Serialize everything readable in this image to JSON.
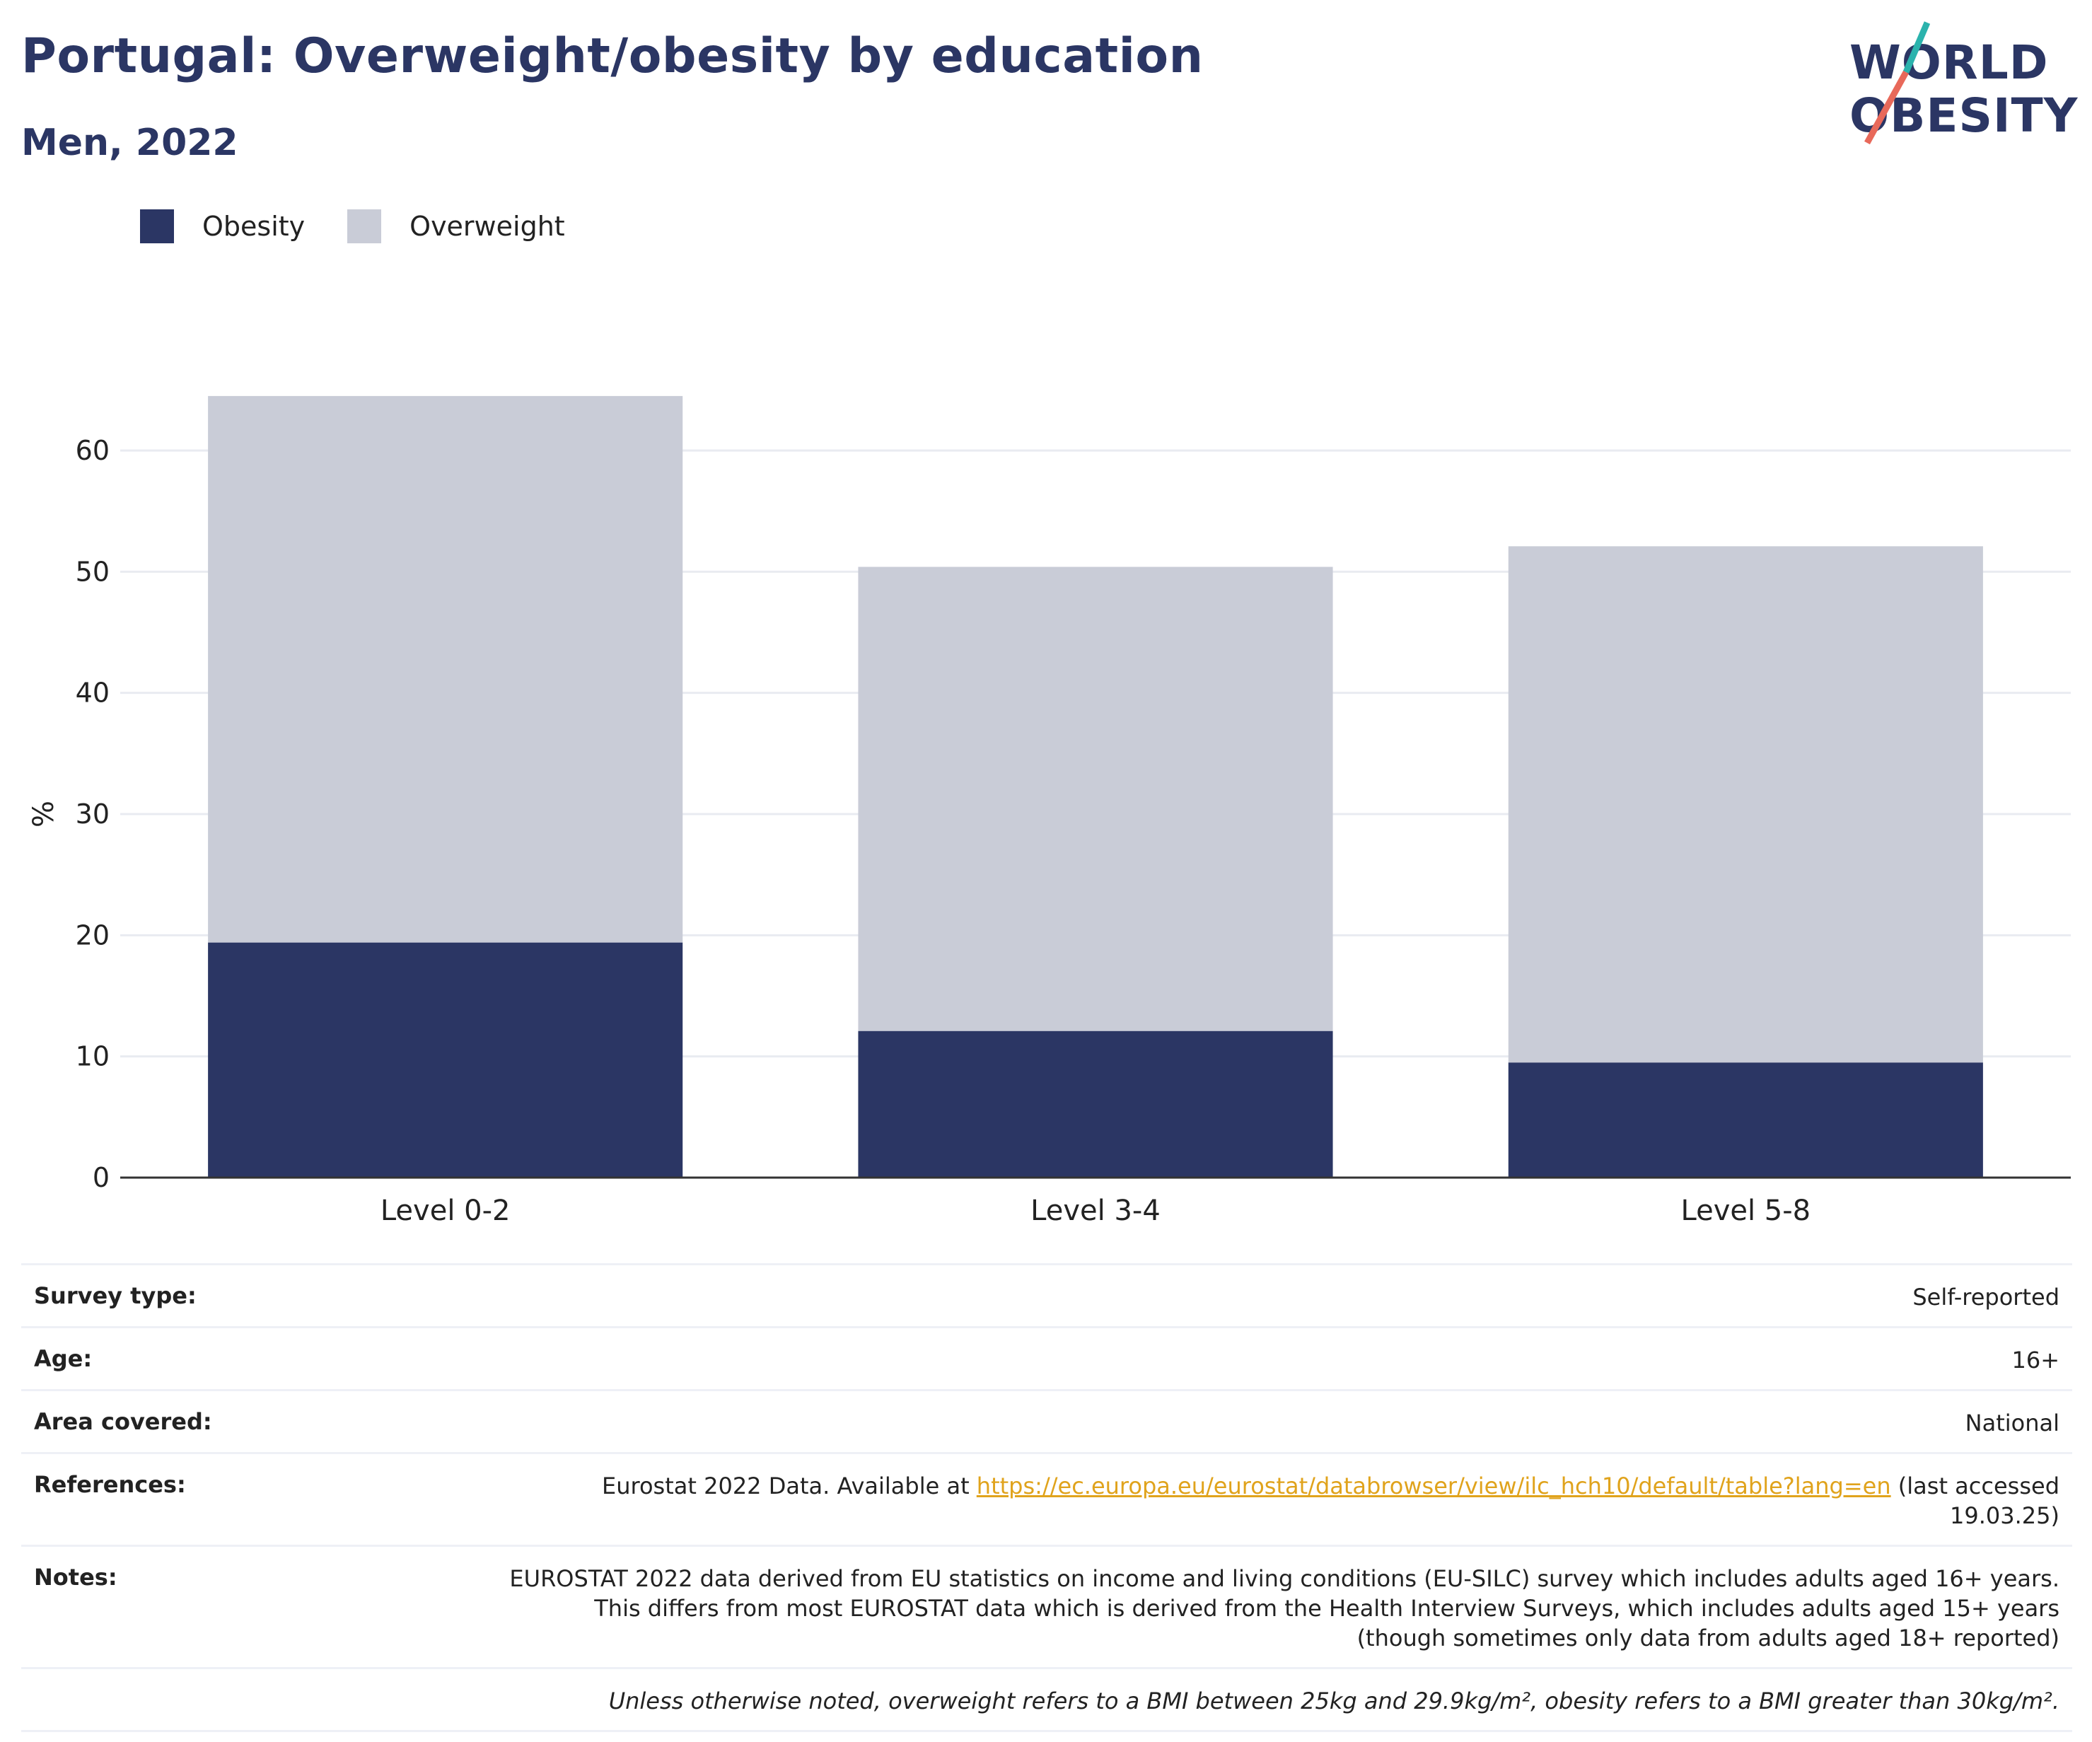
{
  "header": {
    "title": "Portugal: Overweight/obesity by education",
    "subtitle": "Men, 2022"
  },
  "logo": {
    "line1": "WORLD",
    "line2": "OBESITY",
    "text_logo": "WORLD OBESITY"
  },
  "legend": {
    "items": [
      {
        "label": "Obesity",
        "color": "#2b3664"
      },
      {
        "label": "Overweight",
        "color": "#c9ccd7"
      }
    ]
  },
  "chart_data": {
    "type": "bar",
    "stacked": true,
    "categories": [
      "Level 0-2",
      "Level 3-4",
      "Level 5-8"
    ],
    "series": [
      {
        "name": "Obesity",
        "values": [
          19.4,
          12.1,
          9.5
        ],
        "color": "#2b3664"
      },
      {
        "name": "Overweight",
        "values": [
          45.1,
          38.3,
          42.6
        ],
        "color": "#c9ccd7"
      }
    ],
    "totals": [
      64.5,
      50.4,
      52.1
    ],
    "ylabel": "%",
    "ylim": [
      0,
      65
    ],
    "yticks": [
      0,
      10,
      20,
      30,
      40,
      50,
      60
    ],
    "grid": true,
    "legend_position": "top-left"
  },
  "info": {
    "survey_type": {
      "label": "Survey type:",
      "value": "Self-reported"
    },
    "age": {
      "label": "Age:",
      "value": "16+"
    },
    "area": {
      "label": "Area covered:",
      "value": "National"
    },
    "references": {
      "label": "References:",
      "prefix": "Eurostat 2022 Data. Available at ",
      "link": "https://ec.europa.eu/eurostat/databrowser/view/ilc_hch10/default/table?lang=en",
      "suffix": " (last accessed 19.03.25)"
    },
    "notes": {
      "label": "Notes:",
      "value": "EUROSTAT 2022 data derived from EU statistics on income and living conditions (EU-SILC) survey which includes adults aged 16+ years. This differs from most EUROSTAT data which is derived from the Health Interview Surveys, which includes adults aged 15+ years (though sometimes only data from adults aged 18+ reported)"
    },
    "footnote": "Unless otherwise noted, overweight refers to a BMI between 25kg and 29.9kg/m², obesity refers to a BMI greater than 30kg/m²."
  }
}
